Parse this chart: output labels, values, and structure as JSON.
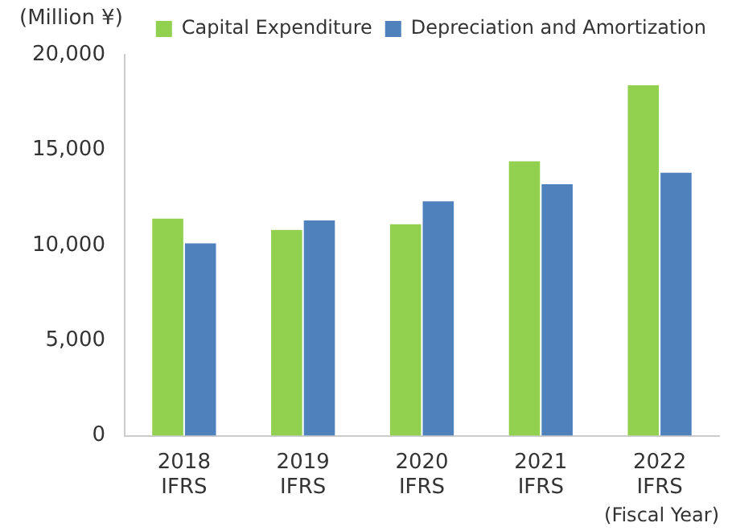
{
  "chart_data": {
    "type": "bar",
    "ylabel": "(Million ¥)",
    "xlabel": "(Fiscal Year)",
    "categories": [
      "2018\nIFRS",
      "2019\nIFRS",
      "2020\nIFRS",
      "2021\nIFRS",
      "2022\nIFRS"
    ],
    "series": [
      {
        "name": "Capital Expenditure",
        "color": "#92d050",
        "values": [
          11400,
          10800,
          11100,
          14400,
          18400
        ]
      },
      {
        "name": "Depreciation and Amortization",
        "color": "#4f81bd",
        "values": [
          10100,
          11300,
          12300,
          13200,
          13800
        ]
      }
    ],
    "ylim": [
      0,
      20000
    ],
    "yticks": [
      0,
      {
        "value": 5000,
        "label": "5,000"
      },
      {
        "value": 10000,
        "label": "10,000"
      },
      {
        "value": 15000,
        "label": "15,000"
      },
      {
        "value": 20000,
        "label": "20,000"
      }
    ],
    "grid": false,
    "legend": "top right"
  }
}
